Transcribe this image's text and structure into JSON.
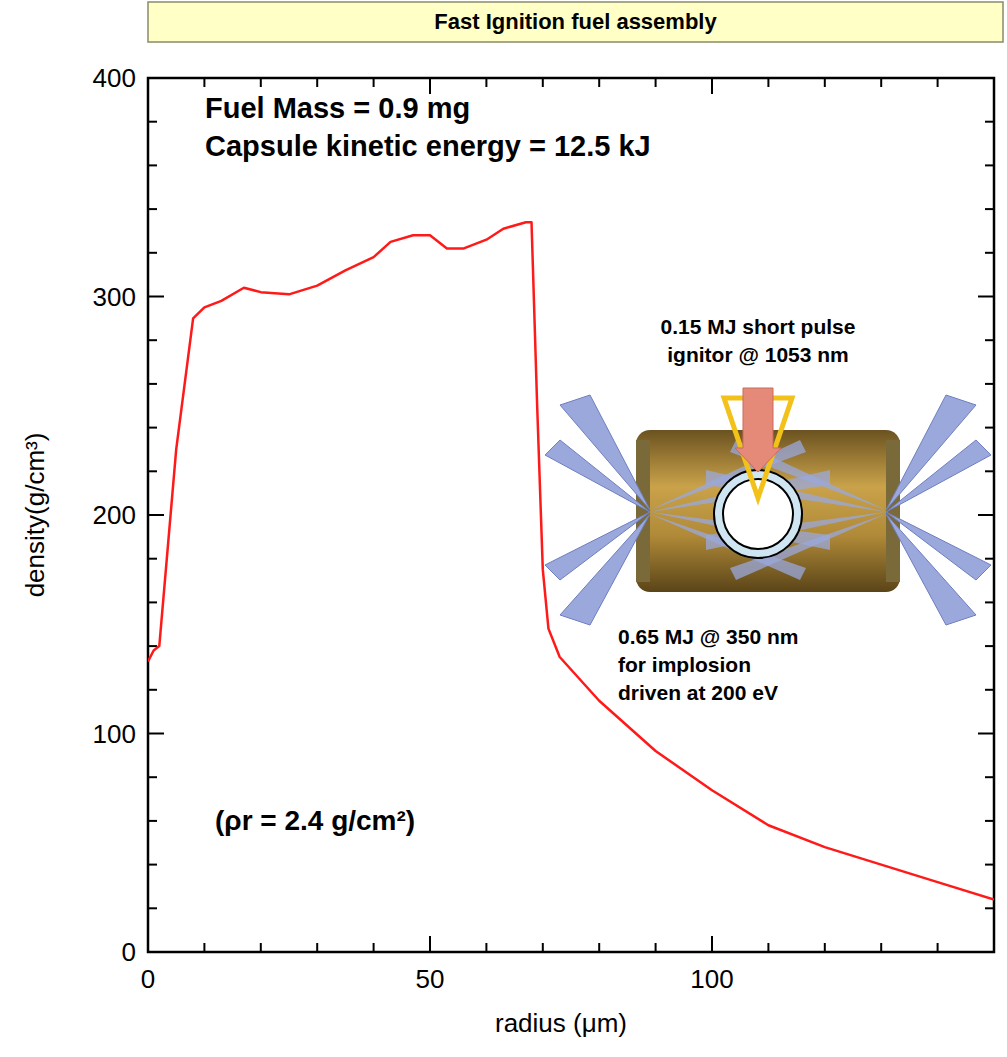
{
  "chart_data": {
    "type": "line",
    "title": "Fast Ignition fuel assembly",
    "x_label": "radius (μm)",
    "y_label": "density(g/cm³)",
    "annotations": [
      "Fuel Mass = 0.9 mg",
      "Capsule kinetic energy = 12.5 kJ",
      "0.15 MJ short pulse",
      "ignitor @ 1053 nm",
      "0.65 MJ @ 350 nm",
      "for implosion",
      "driven at 200 eV",
      "(ρr = 2.4 g/cm²)"
    ],
    "x": [
      0,
      1,
      2,
      3,
      5,
      8,
      10,
      13,
      17,
      20,
      25,
      30,
      35,
      40,
      43,
      47,
      50,
      53,
      56,
      60,
      63,
      67,
      68,
      69,
      70,
      71,
      73,
      80,
      90,
      100,
      110,
      120,
      130,
      140,
      150
    ],
    "values": [
      133,
      138,
      140,
      170,
      230,
      290,
      295,
      298,
      304,
      302,
      301,
      305,
      312,
      318,
      325,
      328,
      328,
      322,
      322,
      326,
      331,
      334,
      334,
      250,
      175,
      148,
      135,
      115,
      92,
      74,
      58,
      48,
      40,
      32,
      24
    ],
    "color": "#ff1a1a",
    "xlim": [
      0,
      150
    ],
    "xticks": [
      0,
      50,
      100
    ],
    "ylim": [
      0,
      400
    ],
    "yticks": [
      0,
      100,
      200,
      300,
      400
    ],
    "grid": false
  }
}
